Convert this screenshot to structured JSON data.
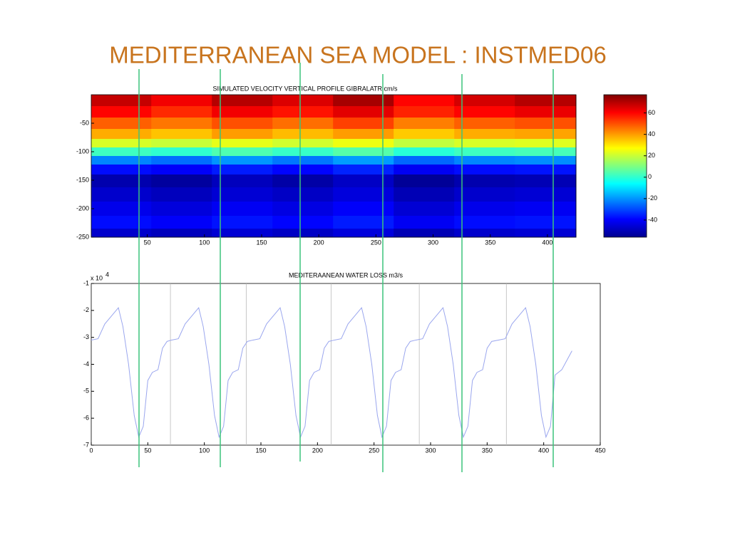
{
  "title": "MEDITERRANEAN SEA MODEL : INSTMED06",
  "chart_data": [
    {
      "type": "heatmap",
      "title": "SIMULATED VELOCITY VERTICAL PROFILE  GIBRALATR cm/s",
      "colormap": "jet",
      "x": [
        27,
        80,
        133,
        186,
        239,
        292,
        345,
        398
      ],
      "y": [
        -10,
        -30,
        -50,
        -70,
        -85,
        -100,
        -115,
        -130,
        -150,
        -175,
        -200,
        -225,
        -245
      ],
      "z": [
        [
          68,
          62,
          70,
          65,
          72,
          60,
          66,
          70
        ],
        [
          60,
          55,
          62,
          58,
          64,
          56,
          60,
          63
        ],
        [
          48,
          45,
          50,
          46,
          52,
          44,
          48,
          50
        ],
        [
          38,
          35,
          40,
          36,
          40,
          34,
          38,
          39
        ],
        [
          22,
          20,
          24,
          21,
          25,
          19,
          22,
          23
        ],
        [
          2,
          0,
          4,
          1,
          5,
          -1,
          2,
          3
        ],
        [
          -22,
          -25,
          -20,
          -24,
          -19,
          -26,
          -22,
          -21
        ],
        [
          -38,
          -40,
          -36,
          -39,
          -35,
          -41,
          -38,
          -37
        ],
        [
          -50,
          -52,
          -48,
          -51,
          -47,
          -53,
          -50,
          -49
        ],
        [
          -46,
          -48,
          -45,
          -47,
          -44,
          -49,
          -46,
          -45
        ],
        [
          -42,
          -44,
          -41,
          -43,
          -40,
          -45,
          -42,
          -41
        ],
        [
          -38,
          -40,
          -37,
          -39,
          -36,
          -41,
          -38,
          -37
        ],
        [
          -46,
          -48,
          -45,
          -47,
          -44,
          -49,
          -46,
          -45
        ]
      ],
      "xlim": [
        1,
        425
      ],
      "xticks": [
        50,
        100,
        150,
        200,
        250,
        300,
        350,
        400
      ],
      "ylim": [
        -250,
        0
      ],
      "yticks": [
        -50,
        -100,
        -150,
        -200,
        -250
      ],
      "clim": [
        -56,
        77
      ],
      "cticks": [
        60,
        40,
        20,
        0,
        -20,
        -40
      ]
    },
    {
      "type": "line",
      "title": "MEDITERAANEAN WATER LOSS  m3/s",
      "y_offset_text": "x 10",
      "y_offset_exponent": "4",
      "x": [
        0,
        6,
        12,
        18,
        24,
        28,
        33,
        38,
        42,
        46,
        50,
        54,
        59,
        63,
        67,
        71,
        77,
        83,
        89,
        95,
        99,
        104,
        109,
        113,
        117,
        121,
        125,
        130,
        134,
        138,
        143,
        149,
        155,
        161,
        167,
        171,
        176,
        181,
        185,
        189,
        193,
        197,
        202,
        206,
        210,
        215,
        221,
        227,
        233,
        239,
        243,
        248,
        253,
        257,
        261,
        265,
        269,
        274,
        278,
        282,
        287,
        293,
        299,
        305,
        311,
        315,
        320,
        325,
        329,
        333,
        337,
        341,
        346,
        350,
        354,
        360,
        366,
        372,
        378,
        384,
        388,
        393,
        398,
        402,
        406,
        410,
        416,
        425
      ],
      "series": [
        {
          "color": "#9aa6ee",
          "values": [
            -3.1,
            -3.05,
            -2.5,
            -2.2,
            -1.9,
            -2.6,
            -4.0,
            -5.9,
            -6.7,
            -6.3,
            -4.6,
            -4.3,
            -4.2,
            -3.4,
            -3.15,
            -3.1,
            -3.05,
            -2.5,
            -2.2,
            -1.9,
            -2.6,
            -4.0,
            -5.9,
            -6.7,
            -6.3,
            -4.6,
            -4.3,
            -4.2,
            -3.4,
            -3.15,
            -3.1,
            -3.05,
            -2.5,
            -2.2,
            -1.9,
            -2.6,
            -4.0,
            -5.9,
            -6.7,
            -6.3,
            -4.6,
            -4.3,
            -4.2,
            -3.4,
            -3.15,
            -3.1,
            -3.05,
            -2.5,
            -2.2,
            -1.9,
            -2.6,
            -4.0,
            -5.9,
            -6.7,
            -6.3,
            -4.6,
            -4.3,
            -4.2,
            -3.4,
            -3.15,
            -3.1,
            -3.05,
            -2.5,
            -2.2,
            -1.9,
            -2.6,
            -4.0,
            -5.9,
            -6.7,
            -6.3,
            -4.6,
            -4.3,
            -4.2,
            -3.4,
            -3.15,
            -3.1,
            -3.05,
            -2.5,
            -2.2,
            -1.9,
            -2.6,
            -4.0,
            -5.9,
            -6.7,
            -6.3,
            -4.4,
            -4.2,
            -3.5
          ]
        }
      ],
      "xlim": [
        0,
        450
      ],
      "xticks": [
        0,
        50,
        100,
        150,
        200,
        250,
        300,
        350,
        400,
        450
      ],
      "ylim": [
        -7,
        -1
      ],
      "yticks": [
        -1,
        -2,
        -3,
        -4,
        -5,
        -6,
        -7
      ]
    }
  ]
}
